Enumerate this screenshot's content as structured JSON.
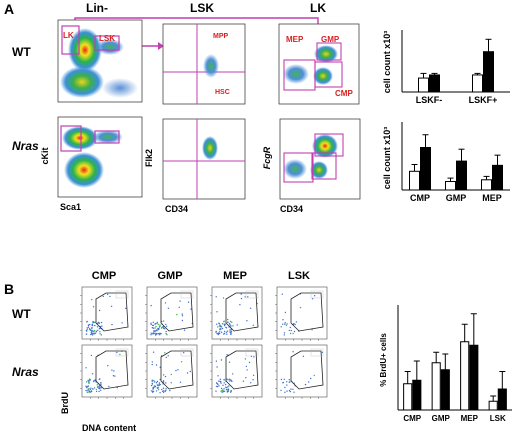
{
  "panel_a": {
    "letter": "A",
    "headers": [
      "Lin-",
      "LSK",
      "LK"
    ],
    "row_labels": [
      "WT",
      "Nras"
    ],
    "gate_labels": {
      "lk": "LK",
      "lsk": "LSK",
      "mpp": "MPP",
      "hsc": "HSC",
      "mep": "MEP",
      "gmp": "GMP",
      "cmp": "CMP"
    },
    "axes": {
      "lin_y": "cKit",
      "lin_x": "Sca1",
      "lsk_y": "Flk2",
      "lsk_x": "CD34",
      "lk_y": "FcgR",
      "lk_x": "CD34"
    }
  },
  "panel_b": {
    "letter": "B",
    "headers": [
      "CMP",
      "GMP",
      "MEP",
      "LSK"
    ],
    "row_labels": [
      "WT",
      "Nras"
    ],
    "y_axis": "BrdU",
    "x_axis": "DNA content"
  },
  "chart_data": [
    {
      "type": "bar",
      "ylabel": "cell count x10³",
      "categories": [
        "LSKF-",
        "LSKF+"
      ],
      "series": [
        {
          "values": [
            45,
            55
          ],
          "errors": [
            15,
            5
          ],
          "color": "#ffffff"
        },
        {
          "values": [
            55,
            130
          ],
          "errors": [
            5,
            40
          ],
          "color": "#000000"
        }
      ],
      "ylim": [
        0,
        200
      ]
    },
    {
      "type": "bar",
      "ylabel": "cell count x10³",
      "categories": [
        "CMP",
        "GMP",
        "MEP"
      ],
      "series": [
        {
          "values": [
            2.2,
            1.0,
            1.2
          ],
          "errors": [
            0.8,
            0.4,
            0.4
          ],
          "color": "#ffffff"
        },
        {
          "values": [
            5.0,
            3.4,
            2.9
          ],
          "errors": [
            1.5,
            1.4,
            1.2
          ],
          "color": "#000000"
        }
      ],
      "ylim": [
        0,
        8
      ]
    },
    {
      "type": "bar",
      "ylabel": "% BrdU+ cells",
      "categories": [
        "CMP",
        "GMP",
        "MEP",
        "LSK"
      ],
      "series": [
        {
          "values": [
            15,
            27,
            39,
            5
          ],
          "errors": [
            7,
            6,
            10,
            3
          ],
          "color": "#ffffff"
        },
        {
          "values": [
            17,
            23,
            37,
            12
          ],
          "errors": [
            11,
            9,
            18,
            10
          ],
          "color": "#000000"
        }
      ],
      "ylim": [
        0,
        60
      ]
    }
  ]
}
